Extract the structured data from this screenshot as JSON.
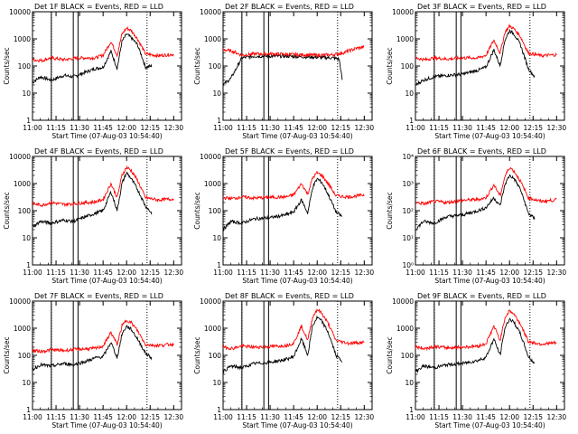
{
  "chart_data": {
    "type": "line",
    "layout": "3x3 grid",
    "yscale": "log",
    "ylim": [
      1,
      10000
    ],
    "y_ticks": [
      "1",
      "10",
      "100",
      "1000",
      "10000"
    ],
    "y_ticks_power": [
      "10⁰",
      "10¹",
      "10²",
      "10³",
      "10⁴"
    ],
    "x_ticks": [
      "11:00",
      "11:15",
      "11:30",
      "11:45",
      "12:00",
      "12:15",
      "12:30"
    ],
    "xlim": [
      "11:00",
      "12:35"
    ],
    "colors": {
      "events": "#000000",
      "lld": "#ff0000",
      "markers": "#000000",
      "background": "#ffffff"
    },
    "series_styles": [
      {
        "name": "Events",
        "color": "#000000"
      },
      {
        "name": "LLD",
        "color": "#ff0000"
      }
    ],
    "marker_times": {
      "dotted": [
        "11:12",
        "12:13"
      ],
      "solid": [
        "11:12",
        "11:26",
        "11:29"
      ]
    },
    "panels": [
      {
        "title": "Det 1F BLACK = Events, RED = LLD",
        "ylabel": "Counts/sec",
        "xlabel": "Start Time (07-Aug-03 10:54:40)",
        "tick_style": "decimal",
        "series": [
          {
            "name": "Events",
            "x": [
              "11:00",
              "11:05",
              "11:12",
              "11:20",
              "11:26",
              "11:34",
              "11:40",
              "11:45",
              "11:50",
              "11:54",
              "11:57",
              "12:00",
              "12:03",
              "12:07",
              "12:10",
              "12:12",
              "12:16"
            ],
            "y": [
              25,
              40,
              30,
              45,
              40,
              60,
              80,
              90,
              350,
              80,
              800,
              1500,
              1100,
              600,
              200,
              90,
              100
            ]
          },
          {
            "name": "LLD",
            "x": [
              "11:00",
              "11:06",
              "11:12",
              "11:20",
              "11:30",
              "11:40",
              "11:45",
              "11:50",
              "11:54",
              "11:57",
              "12:00",
              "12:03",
              "12:07",
              "12:12",
              "12:20",
              "12:30"
            ],
            "y": [
              170,
              160,
              200,
              170,
              200,
              200,
              250,
              800,
              250,
              1500,
              2500,
              2000,
              1000,
              280,
              240,
              270
            ]
          }
        ]
      },
      {
        "title": "Det 2F BLACK = Events, RED = LLD",
        "ylabel": "Counts/sec",
        "xlabel": "Start Time (07-Aug-03 10:54:40)",
        "tick_style": "decimal",
        "series": [
          {
            "name": "Events",
            "x": [
              "11:00",
              "11:05",
              "11:12",
              "11:20",
              "11:30",
              "11:40",
              "11:50",
              "12:00",
              "12:10",
              "12:14",
              "12:16"
            ],
            "y": [
              20,
              35,
              200,
              230,
              230,
              230,
              220,
              210,
              200,
              180,
              30
            ]
          },
          {
            "name": "LLD",
            "x": [
              "11:00",
              "11:06",
              "11:12",
              "11:20",
              "11:30",
              "11:40",
              "11:50",
              "12:00",
              "12:10",
              "12:16",
              "12:25",
              "12:30"
            ],
            "y": [
              400,
              350,
              250,
              280,
              280,
              270,
              260,
              250,
              260,
              300,
              450,
              500
            ]
          }
        ]
      },
      {
        "title": "Det 3F BLACK = Events, RED = LLD",
        "ylabel": "Counts/sec",
        "xlabel": "Start Time (07-Aug-03 10:54:40)",
        "tick_style": "decimal",
        "series": [
          {
            "name": "Events",
            "x": [
              "11:00",
              "11:05",
              "11:12",
              "11:20",
              "11:30",
              "11:40",
              "11:45",
              "11:50",
              "11:54",
              "11:57",
              "12:00",
              "12:03",
              "12:07",
              "12:12",
              "12:16"
            ],
            "y": [
              20,
              30,
              40,
              45,
              50,
              70,
              90,
              400,
              100,
              900,
              2000,
              1500,
              600,
              80,
              40
            ]
          },
          {
            "name": "LLD",
            "x": [
              "11:00",
              "11:06",
              "11:12",
              "11:20",
              "11:30",
              "11:40",
              "11:45",
              "11:50",
              "11:54",
              "11:57",
              "12:00",
              "12:03",
              "12:07",
              "12:12",
              "12:20",
              "12:30"
            ],
            "y": [
              200,
              170,
              200,
              180,
              200,
              200,
              250,
              900,
              300,
              1700,
              3000,
              2300,
              1200,
              300,
              240,
              260
            ]
          }
        ]
      },
      {
        "title": "Det 4F BLACK = Events, RED = LLD",
        "ylabel": "Counts/sec",
        "xlabel": "Start Time (07-Aug-03 10:54:40)",
        "tick_style": "decimal",
        "series": [
          {
            "name": "Events",
            "x": [
              "11:00",
              "11:05",
              "11:12",
              "11:20",
              "11:26",
              "11:34",
              "11:40",
              "11:45",
              "11:50",
              "11:54",
              "11:57",
              "12:00",
              "12:03",
              "12:07",
              "12:12",
              "12:16"
            ],
            "y": [
              25,
              40,
              35,
              45,
              40,
              60,
              80,
              100,
              500,
              100,
              1000,
              2500,
              1500,
              600,
              150,
              80
            ]
          },
          {
            "name": "LLD",
            "x": [
              "11:00",
              "11:06",
              "11:12",
              "11:20",
              "11:30",
              "11:40",
              "11:45",
              "11:50",
              "11:54",
              "11:57",
              "12:00",
              "12:03",
              "12:07",
              "12:12",
              "12:20",
              "12:30"
            ],
            "y": [
              180,
              160,
              200,
              170,
              190,
              210,
              260,
              1000,
              300,
              2000,
              4000,
              3000,
              1300,
              300,
              250,
              270
            ]
          }
        ]
      },
      {
        "title": "Det 5F BLACK = Events, RED = LLD",
        "ylabel": "Counts/sec",
        "xlabel": "Start Time (07-Aug-03 10:54:40)",
        "tick_style": "decimal",
        "series": [
          {
            "name": "Events",
            "x": [
              "11:00",
              "11:05",
              "11:12",
              "11:20",
              "11:30",
              "11:40",
              "11:45",
              "11:50",
              "11:54",
              "11:57",
              "12:00",
              "12:03",
              "12:07",
              "12:12",
              "12:16"
            ],
            "y": [
              20,
              40,
              35,
              50,
              55,
              70,
              90,
              250,
              80,
              700,
              1500,
              1100,
              400,
              90,
              60
            ]
          },
          {
            "name": "LLD",
            "x": [
              "11:00",
              "11:06",
              "11:12",
              "11:20",
              "11:30",
              "11:40",
              "11:45",
              "11:50",
              "11:54",
              "11:57",
              "12:00",
              "12:03",
              "12:07",
              "12:12",
              "12:20",
              "12:30"
            ],
            "y": [
              300,
              280,
              320,
              290,
              310,
              320,
              380,
              1000,
              400,
              1600,
              2500,
              2000,
              1000,
              350,
              320,
              380
            ]
          }
        ]
      },
      {
        "title": "Det 6F BLACK = Events, RED = LLD",
        "ylabel": "Counts/sec",
        "xlabel": "Start Time (07-Aug-03 10:54:40)",
        "tick_style": "power",
        "series": [
          {
            "name": "Events",
            "x": [
              "11:00",
              "11:05",
              "11:12",
              "11:20",
              "11:30",
              "11:40",
              "11:45",
              "11:50",
              "11:54",
              "11:57",
              "12:00",
              "12:03",
              "12:07",
              "12:12",
              "12:16"
            ],
            "y": [
              20,
              40,
              35,
              60,
              70,
              100,
              130,
              300,
              150,
              900,
              2000,
              1500,
              600,
              80,
              50
            ]
          },
          {
            "name": "LLD",
            "x": [
              "11:00",
              "11:06",
              "11:12",
              "11:20",
              "11:30",
              "11:40",
              "11:45",
              "11:50",
              "11:54",
              "11:57",
              "12:00",
              "12:03",
              "12:07",
              "12:12",
              "12:20",
              "12:30"
            ],
            "y": [
              200,
              180,
              220,
              200,
              240,
              260,
              300,
              900,
              350,
              1800,
              4000,
              2800,
              1200,
              300,
              220,
              250
            ]
          }
        ]
      },
      {
        "title": "Det 7F BLACK = Events, RED = LLD",
        "ylabel": "Counts/sec",
        "xlabel": "Start Time (07-Aug-03 10:54:40)",
        "tick_style": "decimal",
        "series": [
          {
            "name": "Events",
            "x": [
              "11:00",
              "11:05",
              "11:12",
              "11:20",
              "11:26",
              "11:34",
              "11:40",
              "11:45",
              "11:50",
              "11:54",
              "11:57",
              "12:00",
              "12:03",
              "12:07",
              "12:12",
              "12:16"
            ],
            "y": [
              30,
              45,
              40,
              50,
              45,
              60,
              80,
              90,
              300,
              80,
              600,
              1200,
              900,
              400,
              120,
              80
            ]
          },
          {
            "name": "LLD",
            "x": [
              "11:00",
              "11:06",
              "11:12",
              "11:20",
              "11:30",
              "11:40",
              "11:45",
              "11:50",
              "11:54",
              "11:57",
              "12:00",
              "12:03",
              "12:07",
              "12:12",
              "12:20",
              "12:30"
            ],
            "y": [
              150,
              140,
              160,
              150,
              170,
              180,
              220,
              700,
              250,
              1200,
              2000,
              1600,
              800,
              250,
              230,
              260
            ]
          }
        ]
      },
      {
        "title": "Det 8F BLACK = Events, RED = LLD",
        "ylabel": "Counts/sec",
        "xlabel": "Start Time (07-Aug-03 10:54:40)",
        "tick_style": "decimal",
        "series": [
          {
            "name": "Events",
            "x": [
              "11:00",
              "11:05",
              "11:12",
              "11:20",
              "11:30",
              "11:40",
              "11:45",
              "11:50",
              "11:54",
              "11:57",
              "12:00",
              "12:03",
              "12:07",
              "12:12",
              "12:16"
            ],
            "y": [
              25,
              40,
              35,
              50,
              55,
              70,
              90,
              400,
              100,
              1200,
              2500,
              1800,
              700,
              100,
              60
            ]
          },
          {
            "name": "LLD",
            "x": [
              "11:00",
              "11:06",
              "11:12",
              "11:20",
              "11:30",
              "11:40",
              "11:45",
              "11:50",
              "11:54",
              "11:57",
              "12:00",
              "12:03",
              "12:07",
              "12:12",
              "12:20",
              "12:30"
            ],
            "y": [
              200,
              180,
              220,
              200,
              210,
              230,
              280,
              1200,
              350,
              2500,
              5000,
              3500,
              1500,
              350,
              280,
              300
            ]
          }
        ]
      },
      {
        "title": "Det 9F BLACK = Events, RED = LLD",
        "ylabel": "Counts/sec",
        "xlabel": "Start Time (07-Aug-03 10:54:40)",
        "tick_style": "decimal",
        "series": [
          {
            "name": "Events",
            "x": [
              "11:00",
              "11:05",
              "11:12",
              "11:20",
              "11:30",
              "11:40",
              "11:45",
              "11:50",
              "11:54",
              "11:57",
              "12:00",
              "12:03",
              "12:07",
              "12:12",
              "12:16"
            ],
            "y": [
              25,
              40,
              35,
              45,
              50,
              65,
              85,
              400,
              100,
              1000,
              2200,
              1600,
              600,
              90,
              50
            ]
          },
          {
            "name": "LLD",
            "x": [
              "11:00",
              "11:06",
              "11:12",
              "11:20",
              "11:30",
              "11:40",
              "11:45",
              "11:50",
              "11:54",
              "11:57",
              "12:00",
              "12:03",
              "12:07",
              "12:12",
              "12:20",
              "12:30"
            ],
            "y": [
              200,
              180,
              210,
              190,
              200,
              220,
              270,
              1200,
              350,
              2400,
              4500,
              3200,
              1400,
              320,
              260,
              290
            ]
          }
        ]
      }
    ]
  }
}
